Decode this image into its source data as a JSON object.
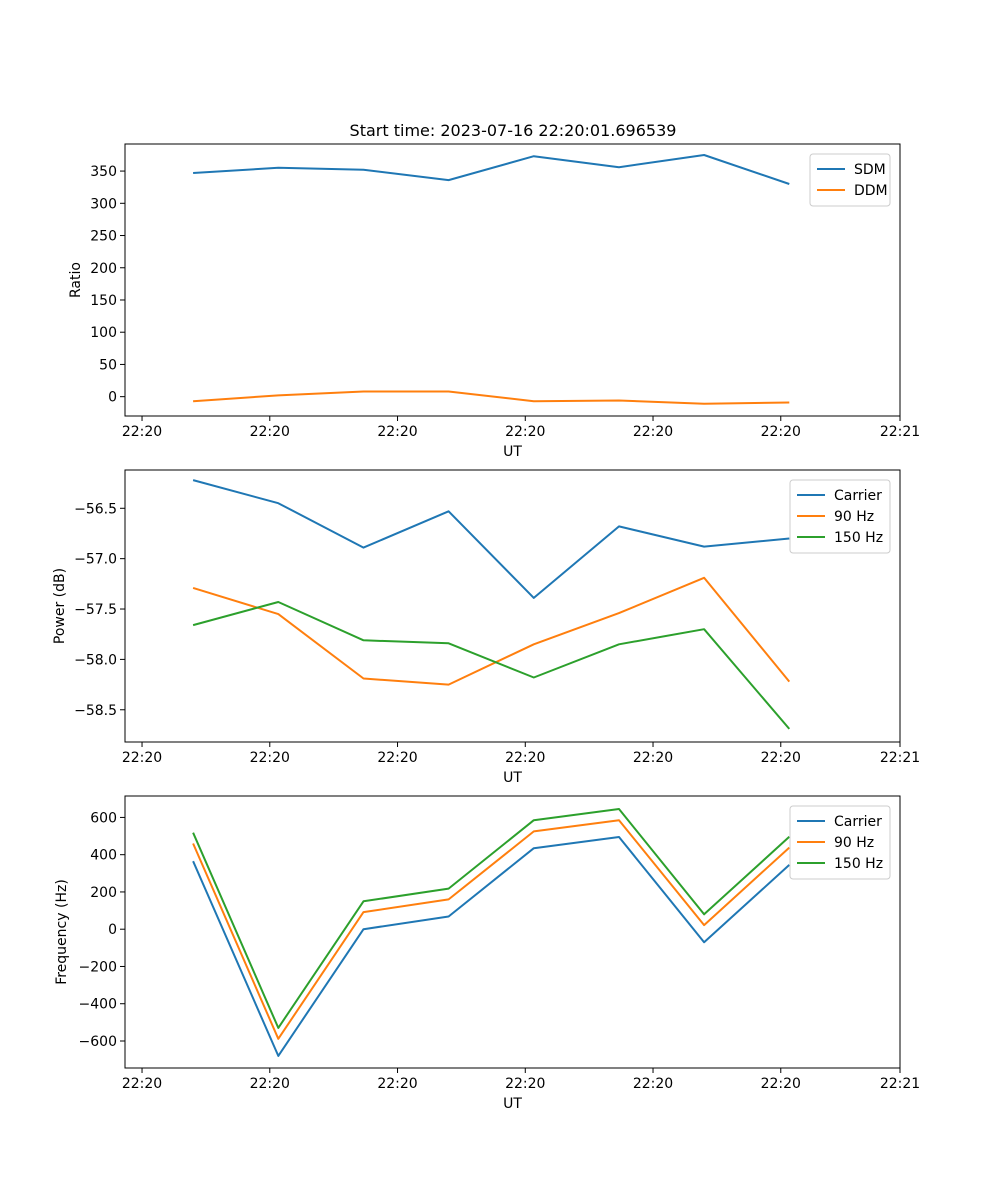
{
  "title": "Start time: 2023-07-16 22:20:01.696539",
  "colors": {
    "c0": "#1f77b4",
    "c1": "#ff7f0e",
    "c2": "#2ca02c"
  },
  "chart_data": [
    {
      "type": "line",
      "title": "Start time: 2023-07-16 22:20:01.696539",
      "xlabel": "UT",
      "ylabel": "Ratio",
      "x": [
        1,
        2,
        3,
        4,
        5,
        6,
        7,
        8
      ],
      "xlim": [
        0.2,
        9.3
      ],
      "xticks": [
        0.4,
        1.9,
        3.4,
        4.9,
        6.4,
        7.9,
        9.3
      ],
      "xticklabels": [
        "22:20",
        "22:20",
        "22:20",
        "22:20",
        "22:20",
        "22:20",
        "22:21"
      ],
      "ylim": [
        -30,
        392
      ],
      "yticks": [
        0,
        50,
        100,
        150,
        200,
        250,
        300,
        350
      ],
      "yticklabels": [
        "0",
        "50",
        "100",
        "150",
        "200",
        "250",
        "300",
        "350"
      ],
      "legend_position": "top-right",
      "series": [
        {
          "name": "SDM",
          "color": "#1f77b4",
          "values": [
            347,
            355,
            352,
            336,
            373,
            356,
            375,
            330
          ]
        },
        {
          "name": "DDM",
          "color": "#ff7f0e",
          "values": [
            -7,
            2,
            8,
            8,
            -7,
            -6,
            -11,
            -9
          ]
        }
      ]
    },
    {
      "type": "line",
      "title": "",
      "xlabel": "UT",
      "ylabel": "Power (dB)",
      "x": [
        1,
        2,
        3,
        4,
        5,
        6,
        7,
        8
      ],
      "xlim": [
        0.2,
        9.3
      ],
      "xticks": [
        0.4,
        1.9,
        3.4,
        4.9,
        6.4,
        7.9,
        9.3
      ],
      "xticklabels": [
        "22:20",
        "22:20",
        "22:20",
        "22:20",
        "22:20",
        "22:20",
        "22:21"
      ],
      "ylim": [
        -58.82,
        -56.12
      ],
      "yticks": [
        -58.5,
        -58.0,
        -57.5,
        -57.0,
        -56.5
      ],
      "yticklabels": [
        "−58.5",
        "−58.0",
        "−57.5",
        "−57.0",
        "−56.5"
      ],
      "legend_position": "top-right",
      "series": [
        {
          "name": "Carrier",
          "color": "#1f77b4",
          "values": [
            -56.22,
            -56.45,
            -56.89,
            -56.53,
            -57.39,
            -56.68,
            -56.88,
            -56.8
          ]
        },
        {
          "name": "90 Hz",
          "color": "#ff7f0e",
          "values": [
            -57.29,
            -57.55,
            -58.19,
            -58.25,
            -57.85,
            -57.54,
            -57.19,
            -58.22
          ]
        },
        {
          "name": "150 Hz",
          "color": "#2ca02c",
          "values": [
            -57.66,
            -57.43,
            -57.81,
            -57.84,
            -58.18,
            -57.85,
            -57.7,
            -58.69
          ]
        }
      ]
    },
    {
      "type": "line",
      "title": "",
      "xlabel": "UT",
      "ylabel": "Frequency (Hz)",
      "x": [
        1,
        2,
        3,
        4,
        5,
        6,
        7,
        8
      ],
      "xlim": [
        0.2,
        9.3
      ],
      "xticks": [
        0.4,
        1.9,
        3.4,
        4.9,
        6.4,
        7.9,
        9.3
      ],
      "xticklabels": [
        "22:20",
        "22:20",
        "22:20",
        "22:20",
        "22:20",
        "22:20",
        "22:21"
      ],
      "ylim": [
        -745,
        715
      ],
      "yticks": [
        -600,
        -400,
        -200,
        0,
        200,
        400,
        600
      ],
      "yticklabels": [
        "−600",
        "−400",
        "−200",
        "0",
        "200",
        "400",
        "600"
      ],
      "legend_position": "top-right",
      "series": [
        {
          "name": "Carrier",
          "color": "#1f77b4",
          "values": [
            365,
            -680,
            0,
            68,
            435,
            495,
            -70,
            345
          ]
        },
        {
          "name": "90 Hz",
          "color": "#ff7f0e",
          "values": [
            460,
            -588,
            92,
            160,
            525,
            585,
            22,
            438
          ]
        },
        {
          "name": "150 Hz",
          "color": "#2ca02c",
          "values": [
            518,
            -530,
            150,
            218,
            585,
            645,
            80,
            496
          ]
        }
      ]
    }
  ]
}
